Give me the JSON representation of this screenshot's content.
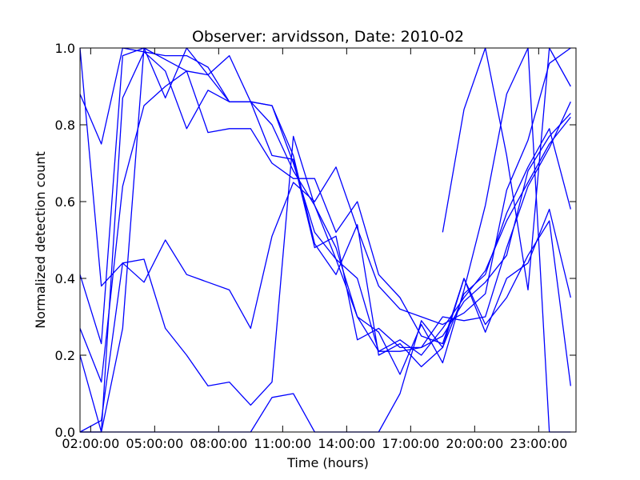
{
  "chart_data": {
    "type": "line",
    "title": "Observer: arvidsson, Date: 2010-02",
    "xlabel": "Time (hours)",
    "ylabel": "Normalized detection count",
    "xlim": [
      1.5,
      24.75
    ],
    "ylim": [
      0.0,
      1.0
    ],
    "grid": false,
    "legend": "none",
    "line_color": "#0000ff",
    "x_ticks": [
      {
        "value": 2,
        "label": "02:00:00"
      },
      {
        "value": 5,
        "label": "05:00:00"
      },
      {
        "value": 8,
        "label": "08:00:00"
      },
      {
        "value": 11,
        "label": "11:00:00"
      },
      {
        "value": 14,
        "label": "14:00:00"
      },
      {
        "value": 17,
        "label": "17:00:00"
      },
      {
        "value": 20,
        "label": "20:00:00"
      },
      {
        "value": 23,
        "label": "23:00:00"
      }
    ],
    "y_ticks": [
      {
        "value": 0.0,
        "label": "0.0"
      },
      {
        "value": 0.2,
        "label": "0.2"
      },
      {
        "value": 0.4,
        "label": "0.4"
      },
      {
        "value": 0.6,
        "label": "0.6"
      },
      {
        "value": 0.8,
        "label": "0.8"
      },
      {
        "value": 1.0,
        "label": "1.0"
      }
    ],
    "series": [
      {
        "x": [
          1.5,
          2.5,
          3.5,
          4.5,
          5.5,
          6.5,
          7.5,
          8.5,
          9.5,
          10.5,
          11.5,
          12.5,
          13.5,
          14.5,
          15.5,
          16.5,
          17.5,
          18.5,
          19.5,
          20.5,
          21.5,
          22.5,
          23.5,
          24.5
        ],
        "y": [
          0.88,
          0.75,
          1.0,
          0.99,
          0.98,
          0.98,
          0.95,
          0.86,
          0.86,
          0.85,
          0.7,
          0.52,
          0.45,
          0.3,
          0.21,
          0.24,
          0.2,
          0.27,
          0.35,
          0.42,
          0.55,
          0.65,
          0.75,
          0.82
        ]
      },
      {
        "x": [
          1.5,
          2.5,
          3.5,
          4.5,
          5.5,
          6.5,
          7.5,
          8.5,
          9.5,
          10.5,
          11.5,
          12.5,
          13.5,
          14.5,
          15.5,
          16.5,
          17.5,
          18.5,
          19.5,
          20.5,
          21.5,
          22.5,
          23.5,
          24.5
        ],
        "y": [
          1.0,
          0.38,
          0.44,
          0.39,
          0.5,
          0.41,
          0.39,
          0.37,
          0.27,
          0.51,
          0.65,
          0.6,
          0.69,
          0.53,
          0.38,
          0.32,
          0.3,
          0.28,
          0.31,
          0.36,
          0.63,
          0.76,
          0.96,
          1.0
        ]
      },
      {
        "x": [
          1.5,
          2.5,
          3.5,
          4.5,
          5.5,
          6.5,
          7.5,
          8.5,
          9.5,
          10.5,
          11.5,
          12.5,
          13.5,
          14.5,
          15.5,
          16.5,
          17.5,
          18.5,
          19.5,
          20.5,
          21.5,
          22.5,
          23.5,
          24.5
        ],
        "y": [
          0.41,
          0.23,
          0.98,
          1.0,
          0.87,
          1.0,
          0.93,
          0.98,
          0.86,
          0.72,
          0.71,
          0.48,
          0.51,
          0.24,
          0.27,
          0.22,
          0.22,
          0.3,
          0.29,
          0.3,
          0.48,
          0.64,
          0.74,
          0.86
        ]
      },
      {
        "x": [
          1.5,
          2.5,
          3.5,
          4.5,
          5.5,
          6.5,
          7.5,
          8.5,
          9.5,
          10.5,
          11.5,
          12.5,
          13.5,
          14.5,
          15.5,
          16.5,
          17.5,
          18.5,
          19.5,
          20.5,
          21.5,
          22.5,
          23.5,
          24.5
        ],
        "y": [
          0.27,
          0.13,
          0.64,
          0.85,
          0.9,
          0.94,
          0.93,
          0.86,
          0.86,
          0.85,
          0.72,
          0.49,
          0.41,
          0.54,
          0.2,
          0.23,
          0.17,
          0.22,
          0.4,
          0.26,
          0.4,
          0.44,
          0.58,
          0.35
        ]
      },
      {
        "x": [
          1.5,
          2.5,
          3.5,
          4.5,
          5.5,
          6.5,
          7.5,
          8.5,
          9.5,
          10.5,
          11.5,
          12.5,
          13.5,
          14.5,
          15.5,
          16.5,
          17.5,
          18.5,
          19.5,
          20.5,
          21.5,
          22.5,
          23.5,
          24.5
        ],
        "y": [
          0.2,
          0.0,
          0.87,
          0.99,
          0.94,
          0.79,
          0.89,
          0.86,
          0.86,
          0.8,
          0.68,
          0.59,
          0.45,
          0.4,
          0.21,
          0.21,
          0.22,
          0.25,
          0.34,
          0.39,
          0.46,
          0.68,
          0.77,
          0.83
        ]
      },
      {
        "x": [
          1.5,
          2.5,
          3.5,
          4.5,
          5.5,
          6.5,
          7.5,
          8.5,
          9.5,
          10.5,
          11.5,
          12.5,
          13.5,
          14.5,
          15.5,
          16.5,
          17.5,
          18.5,
          19.5,
          20.5,
          21.5,
          22.5,
          23.5,
          24.5
        ],
        "y": [
          0.0,
          0.03,
          0.44,
          0.45,
          0.27,
          0.2,
          0.12,
          0.13,
          0.07,
          0.13,
          0.77,
          0.59,
          0.48,
          0.3,
          0.26,
          0.15,
          0.28,
          0.18,
          0.37,
          0.59,
          0.88,
          1.0,
          0.0,
          0.0
        ]
      },
      {
        "x": [
          1.5,
          2.5,
          3.5,
          4.5,
          5.5,
          6.5,
          7.5,
          8.5,
          9.5,
          10.5,
          11.5,
          12.5,
          13.5,
          14.5,
          15.5,
          16.5,
          17.5,
          18.5,
          19.5,
          20.5,
          21.5,
          22.5,
          23.5,
          24.5
        ],
        "y": [
          0.0,
          0.0,
          0.27,
          1.0,
          0.97,
          0.94,
          0.78,
          0.79,
          0.79,
          0.7,
          0.66,
          0.66,
          0.52,
          0.6,
          0.41,
          0.35,
          0.25,
          0.23,
          0.4,
          0.28,
          0.35,
          0.46,
          0.55,
          0.12
        ]
      },
      {
        "x": [
          1.5,
          2.5,
          3.5,
          4.5,
          5.5,
          6.5,
          7.5,
          8.5,
          9.5,
          10.5,
          11.5,
          12.5,
          13.5,
          14.5,
          15.5,
          16.5,
          17.5,
          18.5,
          19.5,
          20.5,
          21.5,
          22.5,
          23.5,
          24.5
        ],
        "y": [
          0.0,
          0.0,
          0.0,
          0.0,
          0.0,
          0.0,
          0.0,
          0.0,
          0.0,
          0.09,
          0.1,
          0.0,
          0.0,
          0.0,
          0.0,
          0.1,
          0.29,
          0.22,
          0.36,
          0.41,
          0.57,
          0.69,
          0.79,
          0.58
        ]
      },
      {
        "x": [
          18.5,
          19.5,
          20.5,
          21.5,
          22.5,
          23.5,
          24.5
        ],
        "y": [
          0.52,
          0.84,
          1.0,
          0.72,
          0.37,
          1.0,
          0.9
        ]
      }
    ]
  }
}
